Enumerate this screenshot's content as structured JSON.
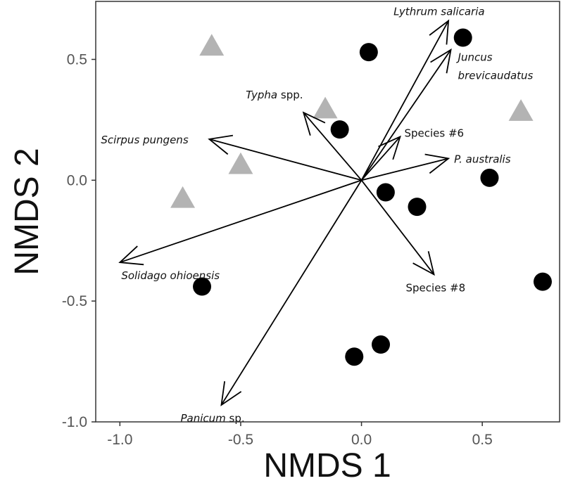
{
  "chart_data": {
    "type": "scatter",
    "xlabel": "NMDS 1",
    "ylabel": "NMDS 2",
    "xlim": [
      -1.1,
      0.82
    ],
    "ylim": [
      -1.0,
      0.74
    ],
    "xticks": [
      "-1.0",
      "-0.5",
      "0.0",
      "0.5"
    ],
    "xtick_values": [
      -1.0,
      -0.5,
      0.0,
      0.5
    ],
    "yticks": [
      "-1.0",
      "-0.5",
      "0.0",
      "0.5"
    ],
    "ytick_values": [
      -1.0,
      -0.5,
      0.0,
      0.5
    ],
    "grid": false,
    "colors": {
      "circle": "#000000",
      "triangle": "#b3b3b3",
      "vector": "#000000",
      "frame": "#333333"
    },
    "series": [
      {
        "marker": "circle",
        "x": [
          0.03,
          0.42,
          -0.09,
          0.1,
          0.23,
          0.53,
          -0.66,
          0.75,
          0.08,
          -0.03
        ],
        "y": [
          0.53,
          0.59,
          0.21,
          -0.05,
          -0.11,
          0.01,
          -0.44,
          -0.42,
          -0.68,
          -0.73
        ]
      },
      {
        "marker": "triangle",
        "x": [
          -0.62,
          -0.15,
          -0.5,
          -0.74,
          0.66
        ],
        "y": [
          0.55,
          0.29,
          0.06,
          -0.08,
          0.28
        ]
      }
    ],
    "vectors": [
      {
        "label_italic": "Lythrum salicaria",
        "label_plain": "",
        "x": 0.36,
        "y": 0.66
      },
      {
        "label_italic": "Juncus",
        "label_plain": "",
        "label_line2": "brevicaudatus",
        "x": 0.37,
        "y": 0.54
      },
      {
        "label_italic": "Typha",
        "label_plain": " spp.",
        "x": -0.24,
        "y": 0.28
      },
      {
        "label_italic": "Scirpus pungens",
        "label_plain": "",
        "x": -0.63,
        "y": 0.17
      },
      {
        "label_italic": "",
        "label_plain": "Species #6",
        "x": 0.16,
        "y": 0.18
      },
      {
        "label_italic": "P. australis",
        "label_plain": "",
        "x": 0.36,
        "y": 0.09
      },
      {
        "label_italic": "Solidago ohioensis",
        "label_plain": "",
        "x": -1.0,
        "y": -0.34
      },
      {
        "label_italic": "",
        "label_plain": "Species #8",
        "x": 0.3,
        "y": -0.39
      },
      {
        "label_italic": "Panicum",
        "label_plain": " sp.",
        "x": -0.58,
        "y": -0.93
      }
    ]
  }
}
